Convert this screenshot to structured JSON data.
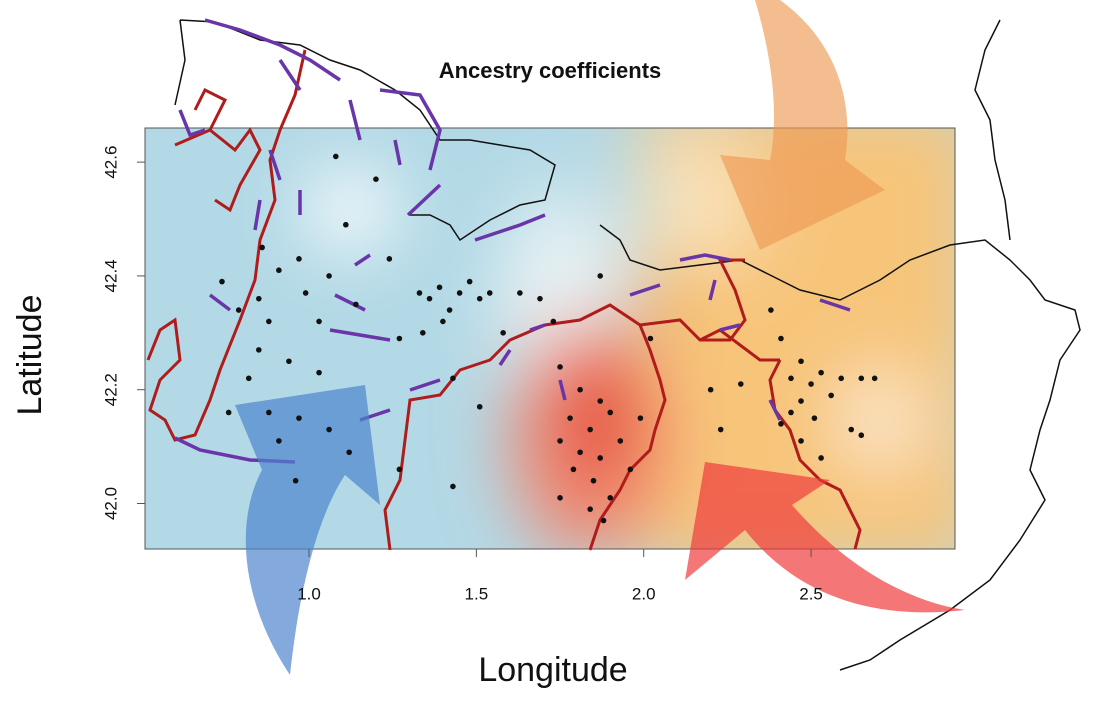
{
  "chart_data": {
    "type": "scatter",
    "title": "Ancestry coefficients",
    "x_label": "Longitude",
    "y_label": "Latitude",
    "xlim": [
      0.51,
      2.93
    ],
    "ylim": [
      41.92,
      42.66
    ],
    "xticks": [
      {
        "value": 1,
        "label": "1.0"
      },
      1.5,
      {
        "value": 2,
        "label": "2.0"
      },
      2.5
    ],
    "yticks": [
      {
        "value": 42,
        "label": "42.0"
      },
      42.2,
      42.4,
      42.6
    ],
    "color": "#111111",
    "x": [
      1.08,
      1.2,
      1.11,
      0.86,
      0.97,
      0.74,
      0.91,
      1.06,
      0.99,
      0.85,
      0.79,
      0.88,
      1.03,
      1.14,
      1.24,
      1.33,
      1.36,
      1.39,
      1.42,
      1.45,
      1.48,
      1.51,
      1.54,
      1.4,
      1.34,
      1.27,
      1.63,
      1.69,
      1.73,
      1.58,
      0.85,
      0.94,
      1.03,
      0.82,
      0.76,
      0.88,
      0.97,
      1.06,
      1.12,
      0.91,
      0.96,
      1.43,
      1.51,
      1.27,
      1.43,
      1.87,
      1.75,
      1.81,
      1.87,
      1.78,
      1.84,
      1.9,
      1.75,
      1.81,
      1.87,
      1.93,
      1.79,
      1.85,
      1.75,
      1.9,
      1.96,
      1.84,
      1.88,
      2.02,
      1.99,
      2.41,
      2.47,
      2.44,
      2.5,
      2.53,
      2.47,
      2.44,
      2.51,
      2.56,
      2.59,
      2.41,
      2.47,
      2.53,
      2.65,
      2.69,
      2.62,
      2.2,
      2.29,
      2.23,
      2.65,
      2.38
    ],
    "y": [
      42.61,
      42.57,
      42.49,
      42.45,
      42.43,
      42.39,
      42.41,
      42.4,
      42.37,
      42.36,
      42.34,
      42.32,
      42.32,
      42.35,
      42.43,
      42.37,
      42.36,
      42.38,
      42.34,
      42.37,
      42.39,
      42.36,
      42.37,
      42.32,
      42.3,
      42.29,
      42.37,
      42.36,
      42.32,
      42.3,
      42.27,
      42.25,
      42.23,
      42.22,
      42.16,
      42.16,
      42.15,
      42.13,
      42.09,
      42.11,
      42.04,
      42.22,
      42.17,
      42.06,
      42.03,
      42.4,
      42.24,
      42.2,
      42.18,
      42.15,
      42.13,
      42.16,
      42.11,
      42.09,
      42.08,
      42.11,
      42.06,
      42.04,
      42.01,
      42.01,
      42.06,
      41.99,
      41.97,
      42.29,
      42.15,
      42.29,
      42.25,
      42.22,
      42.21,
      42.23,
      42.18,
      42.16,
      42.15,
      42.19,
      42.22,
      42.14,
      42.11,
      42.08,
      42.22,
      42.22,
      42.13,
      42.2,
      42.21,
      42.13,
      42.12,
      42.34
    ]
  }
}
